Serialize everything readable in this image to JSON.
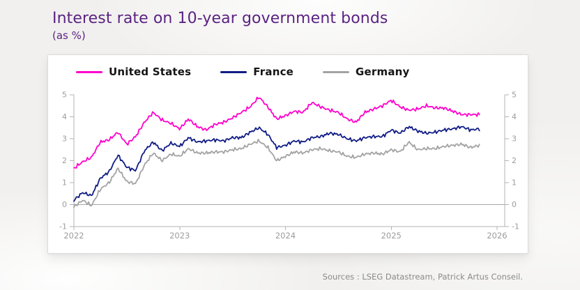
{
  "header": {
    "title": "Interest rate on 10-year government bonds",
    "subtitle": "(as %)"
  },
  "footer": {
    "sources": "Sources : LSEG Datastream, Patrick Artus Conseil."
  },
  "colors": {
    "title": "#5b2383",
    "axis": "#b3b3b3",
    "tick_labels": "#9c9c9c",
    "zero_line": "#a8a8a8",
    "united_states": "#ff00cc",
    "france": "#101c85",
    "germany": "#a3a3a3"
  },
  "chart_data": {
    "type": "line",
    "title": "Interest rate on 10-year government bonds",
    "subtitle": "(as %)",
    "xlabel": "",
    "ylabel": "",
    "xlim": [
      2022,
      2026
    ],
    "ylim": [
      -1,
      5
    ],
    "xticks": [
      2022,
      2023,
      2024,
      2025,
      2026
    ],
    "yticks": [
      -1,
      0,
      1,
      2,
      3,
      4,
      5
    ],
    "grid": false,
    "zero_line": true,
    "legend_position": "top",
    "y_axis_sides": "both",
    "x_start": 2022.0,
    "x_step_years": 0.08333,
    "sampling": "monthly points, Jan 2022 - Nov 2025",
    "series": [
      {
        "name": "United States",
        "color": "#ff00cc",
        "values": [
          1.65,
          1.95,
          2.15,
          2.85,
          2.95,
          3.3,
          2.75,
          3.1,
          3.75,
          4.2,
          3.85,
          3.7,
          3.45,
          3.9,
          3.55,
          3.4,
          3.65,
          3.75,
          3.95,
          4.2,
          4.45,
          4.9,
          4.45,
          3.9,
          4.05,
          4.25,
          4.2,
          4.65,
          4.45,
          4.3,
          4.2,
          3.9,
          3.75,
          4.2,
          4.35,
          4.5,
          4.75,
          4.45,
          4.3,
          4.35,
          4.5,
          4.4,
          4.4,
          4.25,
          4.1,
          4.1,
          4.1
        ]
      },
      {
        "name": "France",
        "color": "#101c85",
        "values": [
          0.2,
          0.55,
          0.4,
          1.2,
          1.5,
          2.25,
          1.7,
          1.55,
          2.45,
          2.85,
          2.45,
          2.8,
          2.65,
          3.05,
          2.85,
          2.9,
          2.95,
          2.9,
          3.05,
          3.05,
          3.3,
          3.5,
          3.2,
          2.6,
          2.7,
          2.9,
          2.85,
          3.05,
          3.1,
          3.25,
          3.2,
          3.0,
          2.9,
          3.05,
          3.1,
          3.1,
          3.4,
          3.25,
          3.55,
          3.35,
          3.25,
          3.3,
          3.4,
          3.45,
          3.55,
          3.4,
          3.45
        ]
      },
      {
        "name": "Germany",
        "color": "#a3a3a3",
        "values": [
          -0.1,
          0.2,
          -0.05,
          0.7,
          1.0,
          1.65,
          1.05,
          0.95,
          1.8,
          2.35,
          2.0,
          2.3,
          2.2,
          2.55,
          2.35,
          2.35,
          2.4,
          2.4,
          2.5,
          2.55,
          2.75,
          2.9,
          2.6,
          2.0,
          2.2,
          2.4,
          2.35,
          2.5,
          2.55,
          2.45,
          2.4,
          2.2,
          2.15,
          2.3,
          2.35,
          2.3,
          2.5,
          2.4,
          2.85,
          2.5,
          2.55,
          2.55,
          2.65,
          2.7,
          2.75,
          2.6,
          2.7
        ]
      }
    ]
  }
}
